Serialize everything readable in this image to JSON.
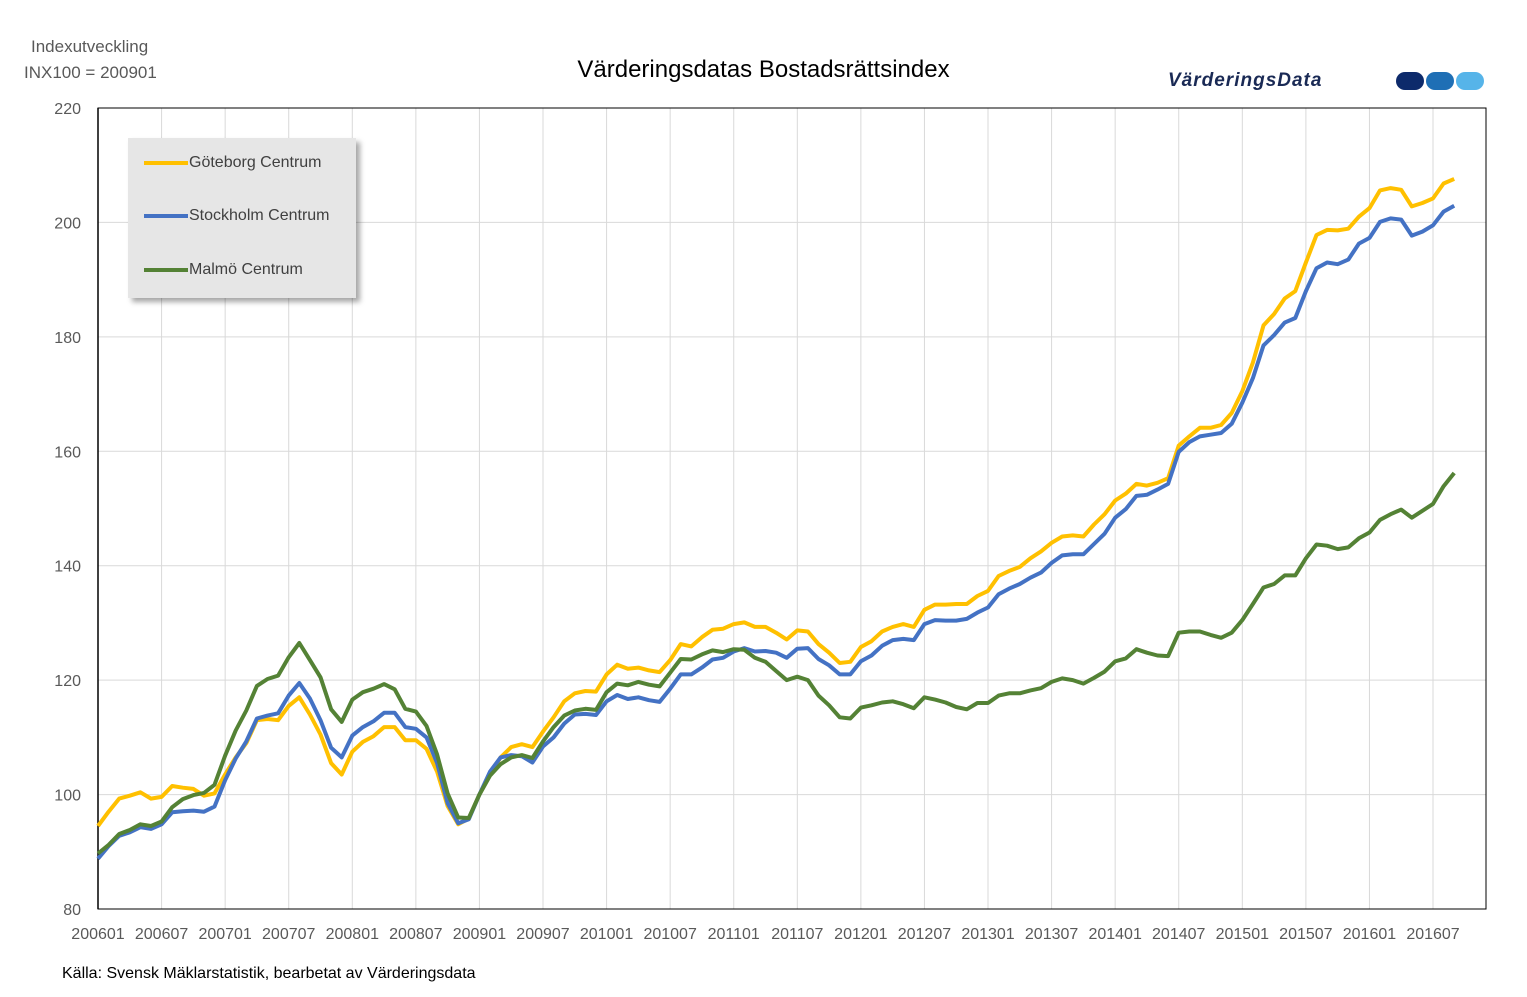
{
  "chart_data": {
    "type": "line",
    "title": "Värderingsdatas Bostadsrättsindex",
    "ylabel_line1": "Indexutveckling",
    "ylabel_line2": "INX100 = 200901",
    "source": "Källa: Svensk Mäklarstatistik, bearbetat av Värderingsdata",
    "logo_text": "VärderingsData",
    "x_start": "200601",
    "x_frequency": "monthly",
    "xlim_months": [
      0,
      131
    ],
    "x_tick_labels": [
      "200601",
      "200607",
      "200701",
      "200707",
      "200801",
      "200807",
      "200901",
      "200907",
      "201001",
      "201007",
      "201101",
      "201107",
      "201201",
      "201207",
      "201301",
      "201307",
      "201401",
      "201407",
      "201501",
      "201507",
      "201601",
      "201607"
    ],
    "ylim": [
      80,
      220
    ],
    "y_ticks": [
      80,
      100,
      120,
      140,
      160,
      180,
      200,
      220
    ],
    "grid": true,
    "legend_placement": "top-left",
    "series": [
      {
        "name": "Göteborg Centrum",
        "color": "#ffc000",
        "values": [
          94.5,
          97,
          99.3,
          99.8,
          100.4,
          99.3,
          99.6,
          101.5,
          101.2,
          101,
          99.8,
          100.2,
          103.5,
          106.5,
          109,
          113,
          113.2,
          113,
          115.5,
          117,
          114,
          110.5,
          105.5,
          103.5,
          107.5,
          109.2,
          110.2,
          111.8,
          111.8,
          109.5,
          109.5,
          108,
          104,
          98,
          94.8,
          95.8,
          100,
          103.5,
          106.5,
          108.3,
          108.8,
          108.3,
          111,
          113.5,
          116.3,
          117.7,
          118.1,
          118,
          121,
          122.7,
          122,
          122.2,
          121.7,
          121.4,
          123.5,
          126.3,
          125.9,
          127.5,
          128.8,
          129,
          129.8,
          130.1,
          129.3,
          129.3,
          128.3,
          127.1,
          128.7,
          128.5,
          126.3,
          124.8,
          123,
          123.2,
          125.8,
          126.8,
          128.5,
          129.3,
          129.8,
          129.3,
          132.3,
          133.2,
          133.2,
          133.3,
          133.3,
          134.7,
          135.6,
          138.2,
          139.1,
          139.8,
          141.3,
          142.5,
          144,
          145.1,
          145.3,
          145.1,
          147.2,
          149,
          151.4,
          152.6,
          154.3,
          154,
          154.5,
          155.3,
          161,
          162.6,
          164.1,
          164.1,
          164.6,
          166.7,
          170.5,
          175.5,
          182,
          184,
          186.7,
          188,
          193,
          197.8,
          198.7,
          198.6,
          198.9,
          201,
          202.5,
          205.6,
          206,
          205.7,
          202.8,
          203.4,
          204.2,
          206.8,
          207.6
        ]
      },
      {
        "name": "Stockholm Centrum",
        "color": "#4472c4",
        "values": [
          88.8,
          91,
          92.8,
          93.4,
          94.3,
          94,
          94.8,
          96.9,
          97.1,
          97.2,
          97,
          97.9,
          102.5,
          106.3,
          109.3,
          113.3,
          113.8,
          114.2,
          117.3,
          119.5,
          116.8,
          113,
          108.2,
          106.5,
          110.3,
          111.8,
          112.8,
          114.3,
          114.3,
          111.8,
          111.5,
          110,
          105.5,
          98.5,
          95,
          95.7,
          100,
          104,
          106.5,
          106.9,
          106.7,
          105.6,
          108.4,
          110,
          112.4,
          114,
          114.1,
          113.9,
          116.3,
          117.4,
          116.7,
          117,
          116.5,
          116.2,
          118.5,
          121,
          121,
          122.2,
          123.6,
          123.9,
          125,
          125.6,
          125,
          125.1,
          124.8,
          123.9,
          125.5,
          125.6,
          123.7,
          122.6,
          121,
          121,
          123.3,
          124.3,
          126,
          127,
          127.2,
          127,
          129.8,
          130.5,
          130.4,
          130.4,
          130.7,
          131.8,
          132.7,
          135,
          136,
          136.8,
          137.9,
          138.8,
          140.5,
          141.8,
          142,
          142,
          143.8,
          145.6,
          148.4,
          149.9,
          152.2,
          152.4,
          153.3,
          154.3,
          159.9,
          161.6,
          162.6,
          162.9,
          163.2,
          164.8,
          168.5,
          172.8,
          178.5,
          180.3,
          182.5,
          183.3,
          188,
          192,
          193,
          192.7,
          193.5,
          196.3,
          197.3,
          200.1,
          200.7,
          200.5,
          197.7,
          198.4,
          199.5,
          201.9,
          202.9
        ]
      },
      {
        "name": "Malmö Centrum",
        "color": "#548235",
        "values": [
          89.7,
          91.2,
          93.1,
          93.8,
          94.8,
          94.5,
          95.3,
          97.8,
          99.2,
          99.9,
          100.3,
          101.7,
          106.8,
          111.2,
          114.7,
          119,
          120.2,
          120.8,
          124,
          126.5,
          123.5,
          120.5,
          114.9,
          112.7,
          116.6,
          117.9,
          118.5,
          119.3,
          118.4,
          115,
          114.5,
          112,
          107,
          100.2,
          96,
          95.9,
          100,
          103.3,
          105.3,
          106.5,
          106.9,
          106.4,
          109.3,
          111.8,
          113.8,
          114.7,
          115,
          114.8,
          117.9,
          119.4,
          119.1,
          119.7,
          119.2,
          118.9,
          121.3,
          123.7,
          123.6,
          124.5,
          125.2,
          124.9,
          125.4,
          125.3,
          123.9,
          123.2,
          121.6,
          120,
          120.6,
          120,
          117.3,
          115.6,
          113.5,
          113.3,
          115.2,
          115.6,
          116.1,
          116.3,
          115.8,
          115.1,
          117,
          116.6,
          116.1,
          115.3,
          114.9,
          116,
          116,
          117.3,
          117.7,
          117.7,
          118.2,
          118.6,
          119.7,
          120.3,
          120,
          119.4,
          120.4,
          121.5,
          123.3,
          123.8,
          125.4,
          124.8,
          124.3,
          124.2,
          128.3,
          128.5,
          128.5,
          127.9,
          127.4,
          128.3,
          130.5,
          133.3,
          136.2,
          136.8,
          138.3,
          138.3,
          141.3,
          143.7,
          143.5,
          142.9,
          143.2,
          144.8,
          145.8,
          148,
          149,
          149.8,
          148.4,
          149.6,
          150.8,
          153.9,
          156.2
        ]
      }
    ],
    "logo_colors": [
      "#0d2a6b",
      "#1f6fb5",
      "#56b4e9"
    ]
  }
}
